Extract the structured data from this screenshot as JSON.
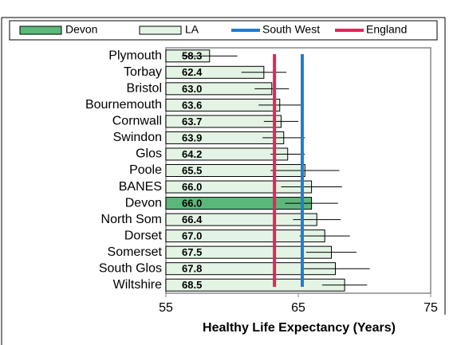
{
  "chart_data": {
    "type": "bar",
    "orientation": "horizontal",
    "x_label": "Healthy Life Expectancy (Years)",
    "categories": [
      "Plymouth",
      "Torbay",
      "Bristol",
      "Bournemouth",
      "Cornwall",
      "Swindon",
      "Glos",
      "Poole",
      "BANES",
      "Devon",
      "North Som",
      "Dorset",
      "Somerset",
      "South Glos",
      "Wiltshire"
    ],
    "values": [
      58.3,
      62.4,
      63.0,
      63.6,
      63.7,
      63.9,
      64.2,
      65.5,
      66.0,
      66.0,
      66.4,
      67.0,
      67.5,
      67.8,
      68.5
    ],
    "value_labels": [
      "58.3",
      "62.4",
      "63.0",
      "63.6",
      "63.7",
      "63.9",
      "64.2",
      "65.5",
      "66.0",
      "66.0",
      "66.4",
      "67.0",
      "67.5",
      "67.8",
      "68.5"
    ],
    "errors": [
      2.1,
      1.7,
      1.3,
      1.6,
      1.3,
      1.6,
      1.3,
      2.6,
      2.3,
      2.0,
      1.8,
      1.9,
      1.9,
      2.6,
      1.7
    ],
    "bar_series": [
      {
        "name": "Devon",
        "color": "#5cb87a"
      },
      {
        "name": "LA",
        "color": "#e4f4e4"
      }
    ],
    "reference_lines": [
      {
        "name": "South West",
        "color": "#1f7fd0",
        "value": 65.3
      },
      {
        "name": "England",
        "color": "#e6245a",
        "value": 63.2
      }
    ],
    "xlim": [
      55,
      75
    ],
    "xticks": [
      55,
      65,
      75
    ]
  }
}
